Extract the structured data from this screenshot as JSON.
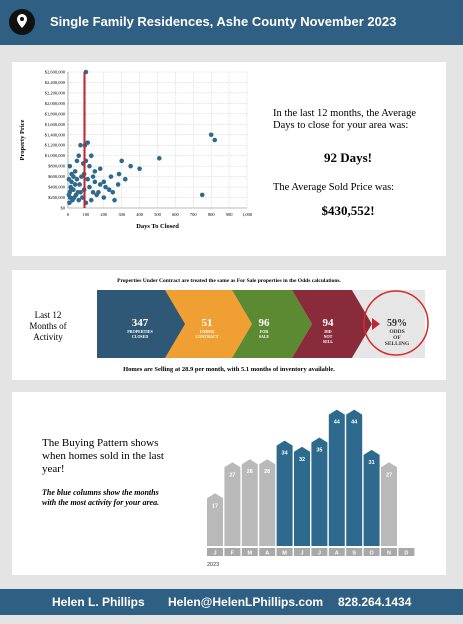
{
  "header": {
    "title": "Single Family Residences, Ashe County November 2023"
  },
  "chart_data": [
    {
      "type": "scatter",
      "xlabel": "Days To Closed",
      "ylabel": "Property Price",
      "color": "#2e6a8e",
      "grid": true,
      "reference_x": 92,
      "reference_color": "#c0282d",
      "x": [
        100,
        800,
        820,
        510,
        750,
        400,
        350,
        300,
        285,
        320,
        240,
        200,
        180,
        150,
        130,
        110,
        95,
        85,
        70,
        60,
        50,
        40,
        30,
        20,
        15,
        10,
        5,
        120,
        140,
        160,
        90,
        80,
        65,
        55,
        45,
        35,
        25,
        18,
        12,
        8,
        200,
        230,
        260,
        110,
        100,
        75,
        130,
        170,
        210,
        250,
        60,
        40,
        20,
        10,
        5,
        90,
        150,
        280,
        180,
        120,
        30,
        70,
        100,
        140,
        50
      ],
      "y": [
        2600000,
        1400000,
        1300000,
        950000,
        250000,
        750000,
        800000,
        900000,
        650000,
        550000,
        600000,
        500000,
        450000,
        700000,
        1000000,
        1250000,
        1200000,
        850000,
        1200000,
        1000000,
        900000,
        700000,
        600000,
        500000,
        400000,
        300000,
        250000,
        400000,
        300000,
        250000,
        350000,
        200000,
        450000,
        300000,
        250000,
        200000,
        150000,
        350000,
        200000,
        100000,
        200000,
        350000,
        150000,
        550000,
        900000,
        600000,
        150000,
        300000,
        400000,
        300000,
        150000,
        450000,
        650000,
        800000,
        550000,
        650000,
        500000,
        450000,
        750000,
        800000,
        350000,
        300000,
        100000,
        600000,
        550000
      ],
      "xlim": [
        0,
        1000
      ],
      "ylim": [
        0,
        2600000
      ],
      "xticks": [
        0,
        100,
        200,
        300,
        400,
        500,
        600,
        700,
        800,
        900,
        {
          "value": 1000,
          "label": "1,000"
        }
      ],
      "yticks": [
        {
          "value": 0,
          "label": "$0"
        },
        {
          "value": 200000,
          "label": "$200,000"
        },
        {
          "value": 400000,
          "label": "$400,000"
        },
        {
          "value": 600000,
          "label": "$600,000"
        },
        {
          "value": 800000,
          "label": "$800,000"
        },
        {
          "value": 1000000,
          "label": "$1,000,000"
        },
        {
          "value": 1200000,
          "label": "$1,200,000"
        },
        {
          "value": 1400000,
          "label": "$1,400,000"
        },
        {
          "value": 1600000,
          "label": "$1,600,000"
        },
        {
          "value": 1800000,
          "label": "$1,800,000"
        },
        {
          "value": 2000000,
          "label": "$2,000,000"
        },
        {
          "value": 2200000,
          "label": "$2,200,000"
        },
        {
          "value": 2400000,
          "label": "$2,400,000"
        },
        {
          "value": 2600000,
          "label": "$2,600,000"
        }
      ]
    },
    {
      "type": "bar",
      "categories": [
        "J",
        "F",
        "M",
        "A",
        "M",
        "J",
        "J",
        "A",
        "S",
        "O",
        "N",
        "D"
      ],
      "values": [
        17,
        27,
        28,
        28,
        34,
        32,
        35,
        44,
        44,
        31,
        27,
        null
      ],
      "colors": [
        "#b9b9b9",
        "#b9b9b9",
        "#b9b9b9",
        "#b9b9b9",
        "#2e6a8e",
        "#2e6a8e",
        "#2e6a8e",
        "#2e6a8e",
        "#2e6a8e",
        "#2e6a8e",
        "#b9b9b9",
        null
      ],
      "year": "2023"
    }
  ],
  "summary": {
    "days_intro": "In the last 12 months, the Average Days to close for your area was:",
    "days": "92 Days!",
    "price_intro": "The Average Sold Price was:",
    "price": "$430,552!"
  },
  "activity": {
    "note": "Properties Under Contract are treated the same as For Sale properties in the Odds calculations.",
    "label": "Last 12 Months of Activity",
    "steps": [
      {
        "value": 347,
        "label": "PROPERTIES CLOSED"
      },
      {
        "value": 51,
        "label": "UNDER CONTRACT"
      },
      {
        "value": 96,
        "label": "FOR SALE"
      },
      {
        "value": 94,
        "label": "DID NOT SELL"
      },
      {
        "value": "59%",
        "label": "ODDS OF SELLING"
      }
    ],
    "footer": "Homes are Selling at 28.9 per month, with 5.1 months of inventory available."
  },
  "pattern": {
    "text": "The Buying Pattern shows when homes sold in the last year!",
    "note": "The blue columns show the months with the most activity for your area."
  },
  "footer": {
    "name": "Helen L. Phillips",
    "email": "Helen@HelenLPhillips.com",
    "phone": "828.264.1434"
  }
}
